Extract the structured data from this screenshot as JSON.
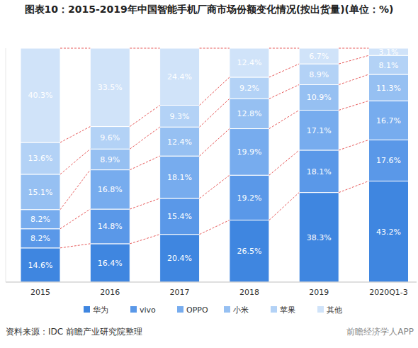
{
  "chart_data": {
    "type": "bar",
    "stacked": true,
    "data_labels": true,
    "tick_labels": "x",
    "title": "图表10：2015-2019年中国智能手机厂商市场份额变化情况(按出货量)(单位：%)",
    "annotations": [
      "资料来源：IDC 前瞻产业研究院整理",
      "前瞻经济学人APP"
    ],
    "categories": [
      "2015",
      "2016",
      "2017",
      "2018",
      "2019",
      "2020Q1-3"
    ],
    "ylim": [
      0,
      100
    ],
    "legend": "bottom",
    "series": [
      {
        "name": "华为",
        "color": "#3f86e0",
        "values": [
          14.6,
          16.4,
          20.4,
          26.5,
          38.3,
          43.2
        ],
        "value_labels": [
          "14.6%",
          "16.4%",
          "20.4%",
          "26.5%",
          "38.3%",
          "43.2%"
        ]
      },
      {
        "name": "vivo",
        "color": "#5a98e8",
        "values": [
          8.2,
          14.8,
          15.4,
          19.2,
          18.1,
          17.6
        ],
        "value_labels": [
          "8.2%",
          "14.8%",
          "15.4%",
          "19.2%",
          "18.1%",
          "17.6%"
        ]
      },
      {
        "name": "OPPO",
        "color": "#77acee",
        "values": [
          8.2,
          16.8,
          18.1,
          19.9,
          17.1,
          16.7
        ],
        "value_labels": [
          "8.2%",
          "16.8%",
          "18.1%",
          "19.9%",
          "17.1%",
          "16.7%"
        ]
      },
      {
        "name": "小米",
        "color": "#96c0f2",
        "values": [
          15.1,
          8.9,
          12.4,
          12.8,
          10.9,
          11.3
        ],
        "value_labels": [
          "15.1%",
          "8.9%",
          "12.4%",
          "12.8%",
          "10.9%",
          "11.3%"
        ]
      },
      {
        "name": "苹果",
        "color": "#b3d2f6",
        "values": [
          13.6,
          9.6,
          9.3,
          9.2,
          8.9,
          8.1
        ],
        "value_labels": [
          "13.6%",
          "9.6%",
          "9.3%",
          "9.2%",
          "8.9%",
          "8.1%"
        ]
      },
      {
        "name": "其他",
        "color": "#d0e3f9",
        "values": [
          40.3,
          33.5,
          24.4,
          12.4,
          6.7,
          3.1
        ],
        "value_labels": [
          "40.3%",
          "33.5%",
          "24.4%",
          "12.4%",
          "6.7%",
          "3.1%"
        ]
      }
    ]
  }
}
